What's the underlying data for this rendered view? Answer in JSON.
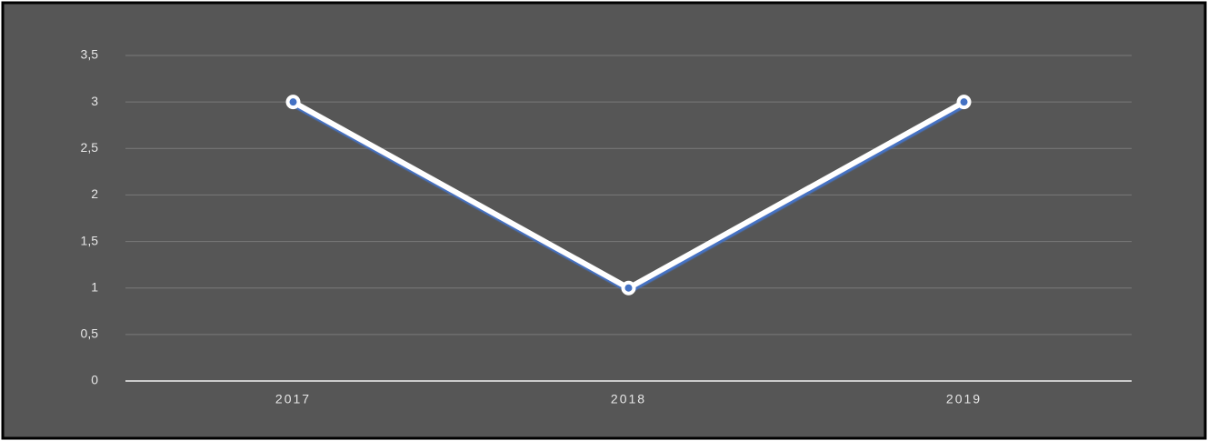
{
  "chart_data": {
    "type": "line",
    "categories": [
      "2017",
      "2018",
      "2019"
    ],
    "series": [
      {
        "color": "#ffffff",
        "values": [
          3,
          1,
          3
        ]
      }
    ],
    "ylim": [
      0,
      3.5
    ],
    "yticks": [
      0,
      {
        "value": 0.5,
        "label": "0,5"
      },
      1,
      {
        "value": 1.5,
        "label": "1,5"
      },
      2,
      {
        "value": 2.5,
        "label": "2,5"
      },
      3,
      {
        "value": 3.5,
        "label": "3,5"
      }
    ],
    "grid": true
  }
}
